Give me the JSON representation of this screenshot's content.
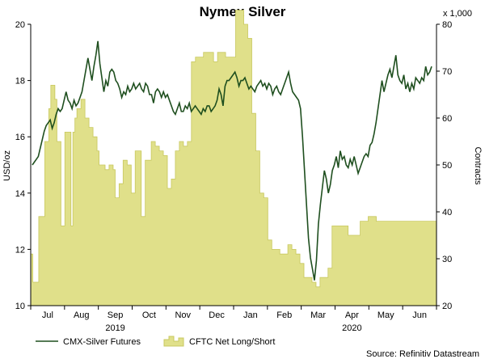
{
  "chart_data": {
    "type": "line+bar",
    "title": "Nymex Silver",
    "left_axis": {
      "label": "USD/oz",
      "ylim": [
        10,
        20
      ],
      "ticks": [
        "10",
        "12",
        "14",
        "16",
        "18",
        "20"
      ]
    },
    "right_axis": {
      "label": "Contracts",
      "unit": "x 1,000",
      "ylim": [
        20,
        80
      ],
      "ticks": [
        "20",
        "30",
        "40",
        "50",
        "60",
        "70",
        "80"
      ]
    },
    "x_axis": {
      "months": [
        "Jul",
        "Aug",
        "Sep",
        "Oct",
        "Nov",
        "Dec",
        "Jan",
        "Feb",
        "Mar",
        "Apr",
        "May",
        "Jun"
      ],
      "years": [
        {
          "label": "2019",
          "under": "Sep"
        },
        {
          "label": "2020",
          "under": "Apr"
        }
      ]
    },
    "legend": [
      "CMX-Silver Futures",
      "CFTC Net Long/Short"
    ],
    "source": "Source: Refinitiv Datastream",
    "colors": {
      "line": "#1f4f1f",
      "bars": "#e0e08a",
      "bars_edge": "#c8c860"
    },
    "series": [
      {
        "name": "CMX-Silver Futures",
        "axis": "left",
        "values": [
          15.0,
          15.1,
          15.2,
          15.3,
          15.6,
          15.9,
          16.2,
          16.4,
          16.5,
          16.6,
          16.3,
          16.5,
          16.8,
          17.0,
          16.9,
          17.0,
          17.3,
          17.6,
          17.3,
          17.2,
          17.0,
          17.3,
          17.1,
          17.2,
          17.4,
          17.6,
          18.0,
          18.4,
          18.8,
          18.4,
          18.0,
          18.5,
          18.9,
          19.4,
          18.6,
          18.1,
          17.6,
          18.0,
          17.8,
          18.3,
          18.4,
          18.3,
          18.0,
          17.9,
          17.7,
          17.4,
          17.6,
          17.5,
          17.8,
          17.6,
          17.7,
          17.9,
          17.7,
          17.8,
          17.9,
          17.7,
          17.6,
          17.9,
          17.8,
          17.5,
          17.5,
          17.2,
          17.6,
          17.7,
          17.6,
          17.4,
          17.6,
          17.4,
          17.5,
          17.3,
          17.1,
          16.9,
          16.8,
          17.0,
          17.2,
          16.9,
          16.9,
          17.1,
          17.0,
          17.2,
          16.9,
          17.0,
          17.1,
          17.0,
          16.9,
          16.8,
          17.0,
          16.9,
          17.1,
          17.1,
          16.9,
          17.0,
          17.1,
          17.3,
          17.7,
          17.5,
          17.1,
          17.8,
          18.0,
          18.0,
          18.1,
          18.2,
          18.3,
          18.1,
          17.8,
          18.0,
          18.0,
          18.1,
          17.9,
          17.7,
          17.8,
          17.7,
          17.6,
          17.8,
          17.9,
          18.0,
          17.8,
          17.9,
          17.7,
          17.9,
          17.8,
          17.5,
          17.7,
          17.8,
          17.6,
          17.5,
          17.7,
          17.9,
          18.1,
          18.3,
          17.9,
          17.6,
          17.5,
          17.4,
          17.3,
          17.0,
          16.0,
          14.8,
          13.6,
          12.4,
          11.7,
          11.3,
          10.9,
          11.6,
          12.9,
          13.6,
          14.2,
          14.8,
          14.5,
          14.0,
          14.3,
          14.8,
          15.0,
          15.3,
          14.9,
          15.5,
          15.2,
          15.3,
          15.0,
          14.9,
          15.2,
          15.0,
          15.3,
          15.0,
          14.7,
          14.9,
          15.1,
          15.3,
          15.4,
          15.3,
          15.7,
          15.8,
          16.1,
          16.5,
          17.0,
          17.5,
          18.0,
          17.6,
          17.9,
          18.2,
          18.4,
          18.1,
          18.5,
          18.9,
          18.2,
          18.0,
          17.9,
          18.2,
          17.7,
          17.9,
          17.6,
          17.9,
          17.7,
          18.1,
          18.0,
          17.9,
          18.1,
          18.0,
          18.5,
          18.2,
          18.3,
          18.5
        ]
      },
      {
        "name": "CFTC Net Long/Short",
        "axis": "right",
        "values": [
          31,
          25,
          25,
          25,
          39,
          39,
          39,
          55,
          55,
          62,
          67,
          67,
          64,
          55,
          55,
          37,
          37,
          57,
          57,
          57,
          37,
          57,
          60,
          62,
          62,
          64,
          64,
          60,
          60,
          58,
          58,
          56,
          56,
          53,
          50,
          50,
          50,
          49,
          49,
          50,
          50,
          49,
          43,
          43,
          46,
          46,
          51,
          51,
          50,
          50,
          44,
          44,
          53,
          53,
          53,
          39,
          39,
          51,
          51,
          51,
          55,
          55,
          54,
          54,
          53,
          53,
          52,
          52,
          45,
          45,
          47,
          47,
          53,
          53,
          55,
          55,
          54,
          54,
          55,
          55,
          72,
          72,
          73,
          73,
          73,
          73,
          74,
          74,
          74,
          74,
          74,
          72,
          72,
          74,
          74,
          74,
          74,
          73,
          73,
          73,
          73,
          73,
          83,
          83,
          83,
          83,
          80,
          80,
          77,
          77,
          61,
          61,
          53,
          53,
          44,
          44,
          43,
          43,
          34,
          34,
          32,
          32,
          32,
          32,
          31,
          31,
          31,
          31,
          33,
          33,
          32,
          32,
          31,
          31,
          29,
          29,
          26,
          26,
          26,
          26,
          25,
          25,
          24,
          24,
          26,
          26,
          26,
          26,
          28,
          28,
          37,
          37,
          37,
          37,
          37,
          37,
          37,
          37,
          35,
          35,
          35,
          35,
          35,
          35,
          38,
          38,
          38,
          38,
          39,
          39,
          39,
          39,
          38,
          38,
          38,
          38,
          38,
          38,
          38,
          38,
          38,
          38,
          38,
          38,
          38,
          38,
          38,
          38,
          38,
          38,
          38,
          38,
          38,
          38,
          38,
          38,
          38,
          38,
          38,
          38,
          38,
          38
        ]
      }
    ]
  }
}
